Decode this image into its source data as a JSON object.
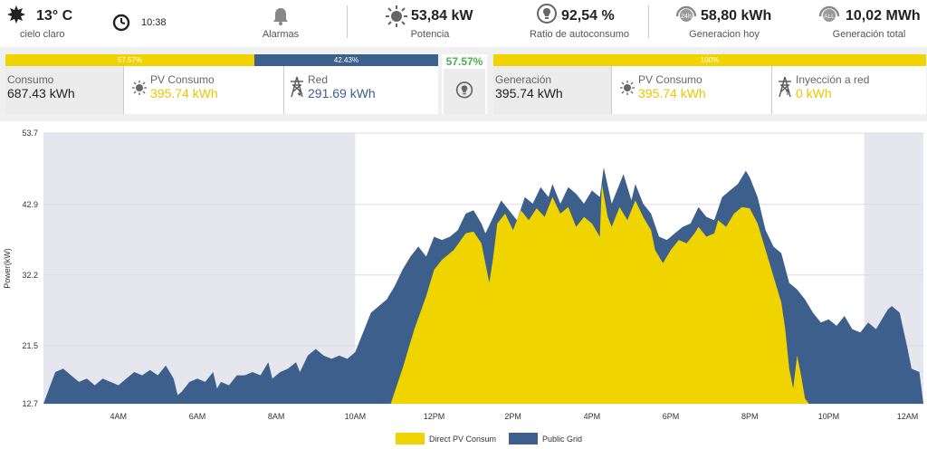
{
  "weather": {
    "temp": "13° C",
    "desc": "cielo claro"
  },
  "clock": {
    "time": "10:38"
  },
  "alarms": {
    "label": "Alarmas"
  },
  "power": {
    "value": "53,84 kW",
    "label": "Potencia"
  },
  "self_ratio": {
    "value": "92,54 %",
    "label": "Ratio de autoconsumo"
  },
  "gen_today": {
    "value": "58,80 kWh",
    "label": "Generacion hoy",
    "badge": "24h"
  },
  "gen_total": {
    "value": "10,02 MWh",
    "label": "Generación total",
    "badge": "ALL"
  },
  "consumption_panel": {
    "bar_pv_label": "57.57%",
    "bar_grid_label": "42.43%",
    "bar_pv_fraction": 0.5757,
    "ratio": "57.57%",
    "consumo": {
      "title": "Consumo",
      "value": "687.43 kWh"
    },
    "pv": {
      "title": "PV Consumo",
      "value": "395.74 kWh"
    },
    "red": {
      "title": "Red",
      "value": "291.69 kWh"
    }
  },
  "generation_panel": {
    "bar_label": "100%",
    "bar_fraction": 1.0,
    "generacion": {
      "title": "Generación",
      "value": "395.74 kWh"
    },
    "pv": {
      "title": "PV Consumo",
      "value": "395.74 kWh"
    },
    "injection": {
      "title": "Inyección a red",
      "value": "0 kWh"
    }
  },
  "colors": {
    "pv": "#f0d400",
    "grid": "#3d5f8c",
    "green": "#4caf50",
    "night": "#e6e6ee"
  },
  "chart_data": {
    "type": "area",
    "ylabel": "Power(kW)",
    "yticks": [
      12.7,
      21.5,
      32.2,
      42.9,
      53.7
    ],
    "ylim": [
      12.7,
      53.7
    ],
    "xticks": [
      "4AM",
      "6AM",
      "8AM",
      "10AM",
      "12PM",
      "2PM",
      "4PM",
      "6PM",
      "8PM",
      "10PM",
      "12AM"
    ],
    "xtick_hours": [
      4,
      6,
      8,
      10,
      12,
      14,
      16,
      18,
      20,
      22,
      24
    ],
    "xlim_hours": [
      2.1,
      24.4
    ],
    "night_shading_hours": [
      [
        2.1,
        10.0
      ],
      [
        22.9,
        24.4
      ]
    ],
    "series": [
      {
        "name": "Direct PV Consum",
        "points": [
          [
            10.9,
            12.7
          ],
          [
            11.2,
            18.0
          ],
          [
            11.5,
            24.0
          ],
          [
            11.8,
            29.0
          ],
          [
            12.0,
            33.0
          ],
          [
            12.2,
            34.5
          ],
          [
            12.5,
            36.0
          ],
          [
            12.8,
            38.5
          ],
          [
            13.0,
            38.8
          ],
          [
            13.2,
            37.0
          ],
          [
            13.4,
            31.0
          ],
          [
            13.5,
            35.0
          ],
          [
            13.6,
            40.0
          ],
          [
            13.8,
            41.5
          ],
          [
            14.0,
            39.0
          ],
          [
            14.2,
            42.0
          ],
          [
            14.4,
            40.5
          ],
          [
            14.6,
            42.3
          ],
          [
            14.8,
            41.0
          ],
          [
            15.0,
            44.0
          ],
          [
            15.2,
            41.5
          ],
          [
            15.4,
            42.5
          ],
          [
            15.6,
            39.5
          ],
          [
            15.8,
            41.0
          ],
          [
            16.0,
            40.0
          ],
          [
            16.2,
            38.0
          ],
          [
            16.25,
            46.0
          ],
          [
            16.4,
            41.0
          ],
          [
            16.5,
            39.5
          ],
          [
            16.7,
            42.5
          ],
          [
            16.9,
            40.5
          ],
          [
            17.1,
            43.5
          ],
          [
            17.3,
            41.0
          ],
          [
            17.5,
            39.0
          ],
          [
            17.6,
            36.0
          ],
          [
            17.8,
            34.0
          ],
          [
            18.0,
            36.0
          ],
          [
            18.2,
            37.5
          ],
          [
            18.4,
            37.0
          ],
          [
            18.6,
            38.5
          ],
          [
            18.7,
            39.5
          ],
          [
            18.9,
            38.0
          ],
          [
            19.1,
            38.5
          ],
          [
            19.2,
            40.5
          ],
          [
            19.4,
            39.5
          ],
          [
            19.6,
            41.5
          ],
          [
            19.8,
            42.5
          ],
          [
            20.0,
            42.3
          ],
          [
            20.2,
            40.0
          ],
          [
            20.4,
            36.0
          ],
          [
            20.6,
            32.0
          ],
          [
            20.8,
            28.0
          ],
          [
            20.9,
            24.0
          ],
          [
            21.0,
            18.0
          ],
          [
            21.1,
            15.0
          ],
          [
            21.2,
            20.0
          ],
          [
            21.3,
            17.0
          ],
          [
            21.4,
            13.5
          ],
          [
            21.5,
            12.7
          ]
        ]
      },
      {
        "name": "Public Grid",
        "points": [
          [
            2.1,
            12.7
          ],
          [
            2.4,
            17.5
          ],
          [
            2.6,
            18.0
          ],
          [
            2.8,
            17.0
          ],
          [
            3.0,
            16.0
          ],
          [
            3.2,
            16.5
          ],
          [
            3.4,
            15.5
          ],
          [
            3.6,
            16.5
          ],
          [
            3.8,
            16.0
          ],
          [
            4.0,
            15.5
          ],
          [
            4.2,
            16.5
          ],
          [
            4.4,
            17.5
          ],
          [
            4.6,
            17.0
          ],
          [
            4.8,
            17.8
          ],
          [
            5.0,
            17.0
          ],
          [
            5.2,
            18.5
          ],
          [
            5.4,
            16.5
          ],
          [
            5.5,
            14.0
          ],
          [
            5.6,
            14.5
          ],
          [
            5.8,
            16.0
          ],
          [
            6.0,
            16.5
          ],
          [
            6.2,
            16.0
          ],
          [
            6.4,
            17.5
          ],
          [
            6.5,
            15.0
          ],
          [
            6.6,
            16.0
          ],
          [
            6.8,
            15.5
          ],
          [
            7.0,
            17.0
          ],
          [
            7.2,
            17.0
          ],
          [
            7.4,
            17.5
          ],
          [
            7.6,
            17.0
          ],
          [
            7.8,
            19.0
          ],
          [
            7.9,
            16.5
          ],
          [
            8.1,
            17.5
          ],
          [
            8.3,
            18.0
          ],
          [
            8.5,
            19.0
          ],
          [
            8.6,
            17.5
          ],
          [
            8.8,
            20.0
          ],
          [
            9.0,
            21.0
          ],
          [
            9.2,
            20.0
          ],
          [
            9.4,
            19.5
          ],
          [
            9.6,
            20.0
          ],
          [
            9.8,
            19.5
          ],
          [
            10.0,
            20.5
          ],
          [
            10.2,
            23.5
          ],
          [
            10.4,
            26.5
          ],
          [
            10.6,
            27.5
          ],
          [
            10.8,
            28.5
          ],
          [
            11.0,
            30.5
          ],
          [
            11.2,
            33.0
          ],
          [
            11.4,
            35.0
          ],
          [
            11.6,
            36.5
          ],
          [
            11.8,
            35.0
          ],
          [
            12.0,
            38.0
          ],
          [
            12.2,
            37.5
          ],
          [
            12.4,
            38.0
          ],
          [
            12.6,
            39.0
          ],
          [
            12.8,
            41.5
          ],
          [
            13.0,
            42.0
          ],
          [
            13.2,
            40.0
          ],
          [
            13.3,
            38.5
          ],
          [
            13.5,
            41.0
          ],
          [
            13.7,
            43.5
          ],
          [
            13.9,
            42.0
          ],
          [
            14.1,
            40.5
          ],
          [
            14.3,
            44.0
          ],
          [
            14.5,
            43.0
          ],
          [
            14.7,
            45.5
          ],
          [
            14.9,
            44.0
          ],
          [
            15.0,
            46.0
          ],
          [
            15.2,
            43.0
          ],
          [
            15.4,
            45.5
          ],
          [
            15.6,
            44.5
          ],
          [
            15.8,
            43.0
          ],
          [
            16.0,
            45.0
          ],
          [
            16.2,
            44.0
          ],
          [
            16.3,
            48.5
          ],
          [
            16.5,
            43.0
          ],
          [
            16.7,
            46.0
          ],
          [
            16.8,
            47.5
          ],
          [
            17.0,
            43.5
          ],
          [
            17.1,
            46.0
          ],
          [
            17.3,
            43.0
          ],
          [
            17.5,
            41.5
          ],
          [
            17.7,
            38.0
          ],
          [
            17.9,
            37.5
          ],
          [
            18.1,
            38.5
          ],
          [
            18.3,
            39.5
          ],
          [
            18.5,
            40.0
          ],
          [
            18.7,
            42.5
          ],
          [
            18.9,
            41.0
          ],
          [
            19.1,
            40.5
          ],
          [
            19.3,
            44.0
          ],
          [
            19.5,
            45.0
          ],
          [
            19.7,
            46.0
          ],
          [
            19.9,
            48.0
          ],
          [
            20.0,
            47.0
          ],
          [
            20.2,
            44.0
          ],
          [
            20.4,
            39.0
          ],
          [
            20.6,
            36.5
          ],
          [
            20.8,
            35.5
          ],
          [
            21.0,
            31.0
          ],
          [
            21.2,
            30.0
          ],
          [
            21.4,
            28.5
          ],
          [
            21.6,
            26.5
          ],
          [
            21.8,
            25.0
          ],
          [
            22.0,
            25.5
          ],
          [
            22.2,
            24.5
          ],
          [
            22.4,
            26.0
          ],
          [
            22.6,
            24.0
          ],
          [
            22.8,
            23.5
          ],
          [
            23.0,
            25.0
          ],
          [
            23.2,
            24.0
          ],
          [
            23.4,
            26.0
          ],
          [
            23.5,
            27.0
          ],
          [
            23.6,
            27.5
          ],
          [
            23.8,
            26.5
          ],
          [
            24.0,
            21.0
          ],
          [
            24.1,
            18.0
          ],
          [
            24.3,
            17.5
          ],
          [
            24.4,
            12.7
          ]
        ]
      }
    ],
    "legend_position": "bottom-center"
  }
}
